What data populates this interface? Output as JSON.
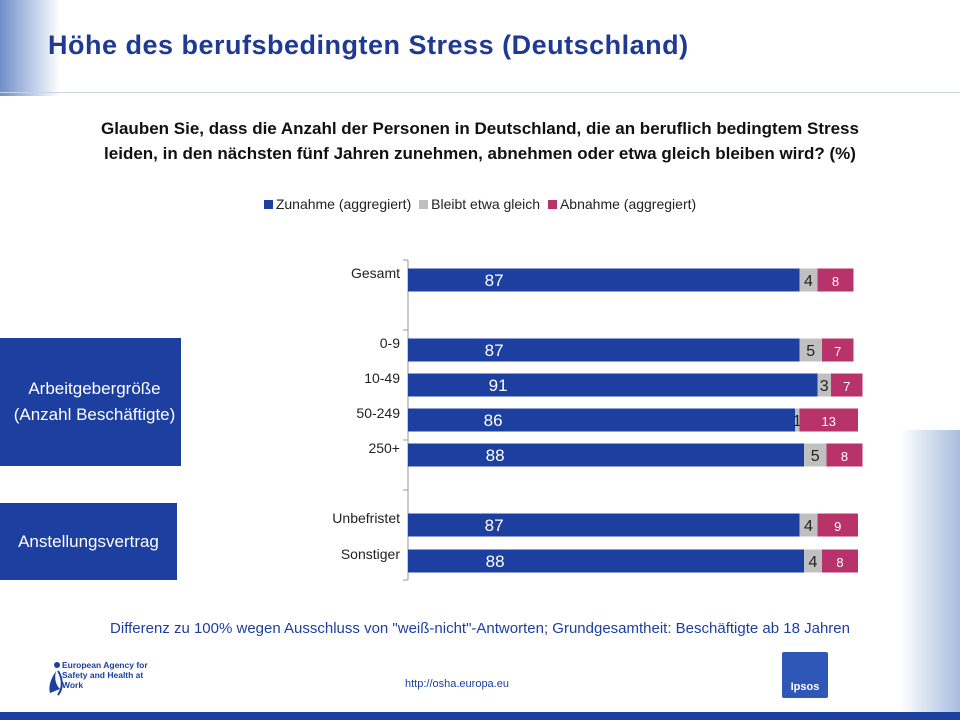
{
  "page": {
    "title": "Höhe des berufsbedingten Stress (Deutschland)",
    "footnote": "Differenz zu 100% wegen Ausschluss von \"weiß-nicht\"-Antworten;  Grundgesamtheit: Beschäftigte ab 18 Jahren",
    "url": "http://osha.europa.eu",
    "eu_logo_text": "European Agency for Safety and Health at Work",
    "ipsos_logo_text": "Ipsos",
    "groups": {
      "employer_size": "Arbeitgebergröße (Anzahl Beschäftigte)",
      "contract": "Anstellungsvertrag"
    }
  },
  "chart_data": {
    "type": "bar",
    "orientation": "horizontal",
    "stacked": true,
    "title": "Glauben Sie, dass die Anzahl der Personen in Deutschland, die an beruflich bedingtem Stress leiden, in den nächsten fünf Jahren zunehmen, abnehmen oder etwa gleich bleiben wird? (%)",
    "legend_position": "top",
    "grid": false,
    "xlim": [
      0,
      100
    ],
    "categories": [
      "Gesamt",
      "0-9",
      "10-49",
      "50-249",
      "250+",
      "Unbefristet",
      "Sonstiger"
    ],
    "series": [
      {
        "name": "Zunahme (aggregiert)",
        "color": "#1c3fa0",
        "label_color": "#ffffff",
        "values": [
          87,
          87,
          91,
          86,
          88,
          87,
          88
        ]
      },
      {
        "name": "Bleibt etwa gleich",
        "color": "#c0c0c0",
        "label_color": "#222222",
        "values": [
          4,
          5,
          3,
          1,
          5,
          4,
          4
        ]
      },
      {
        "name": "Abnahme (aggregiert)",
        "color": "#b8336a",
        "label_color": "#ffffff",
        "values": [
          8,
          7,
          7,
          13,
          8,
          9,
          8
        ]
      }
    ]
  }
}
